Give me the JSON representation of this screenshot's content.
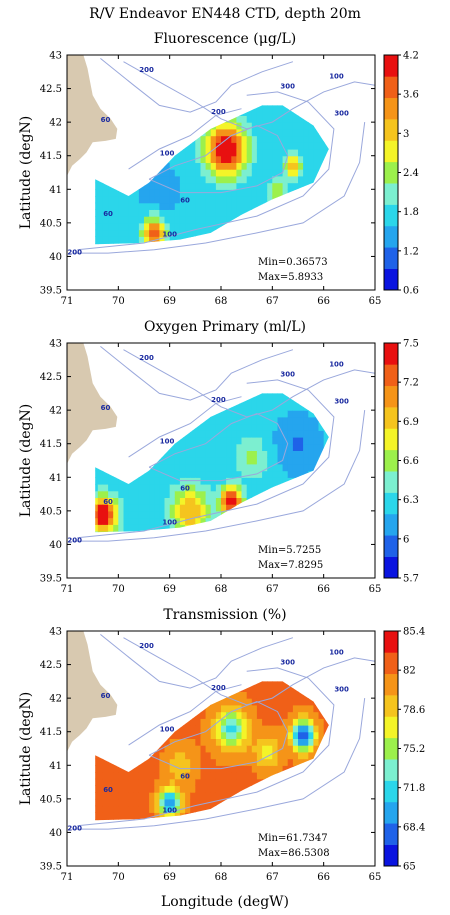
{
  "page": {
    "title": "R/V Endeavor EN448 CTD, depth 20m",
    "xlabel": "Longitude (degW)"
  },
  "colors": {
    "land": "#d8c9b0",
    "isobath": "#9aa8dc",
    "frame": "#000000",
    "depth_label": "#1a2aa0"
  },
  "colormap": [
    "#0a14e0",
    "#1f62e8",
    "#25a5ee",
    "#2bd6ea",
    "#7cefd0",
    "#9cf04c",
    "#f4f428",
    "#f5c41e",
    "#f59418",
    "#f06018",
    "#e81010"
  ],
  "chart_data": [
    {
      "type": "heatmap",
      "title": "Fluorescence (μg/L)",
      "xlabel": "",
      "ylabel": "Latitude (degN)",
      "xlim": [
        71,
        65
      ],
      "ylim": [
        39.5,
        43
      ],
      "xticks": [
        "71",
        "70",
        "69",
        "68",
        "67",
        "66",
        "65"
      ],
      "yticks": [
        "39.5",
        "40",
        "40.5",
        "41",
        "41.5",
        "42",
        "42.5",
        "43"
      ],
      "colorbar": {
        "min": 0.6,
        "max": 4.2,
        "ticks": [
          "0.6",
          "1.2",
          "1.8",
          "2.4",
          "3",
          "3.6",
          "4.2"
        ]
      },
      "annotations": {
        "min": "Min=0.36573",
        "max": "Max=5.8933"
      },
      "hotspots": [
        {
          "lon": 67.9,
          "lat": 41.6,
          "value": 4.4,
          "spread": 0.28
        },
        {
          "lon": 66.6,
          "lat": 41.35,
          "value": 3.2,
          "spread": 0.12
        },
        {
          "lon": 69.3,
          "lat": 40.35,
          "value": 3.8,
          "spread": 0.16
        },
        {
          "lon": 66.9,
          "lat": 40.95,
          "value": 2.6,
          "spread": 0.14
        },
        {
          "lon": 69.2,
          "lat": 41.0,
          "value": 1.4,
          "spread": 0.2
        }
      ],
      "background_value": 1.6
    },
    {
      "type": "heatmap",
      "title": "Oxygen Primary (ml/L)",
      "xlabel": "",
      "ylabel": "Latitude (degN)",
      "xlim": [
        71,
        65
      ],
      "ylim": [
        39.5,
        43
      ],
      "xticks": [
        "71",
        "70",
        "69",
        "68",
        "67",
        "66",
        "65"
      ],
      "yticks": [
        "39.5",
        "40",
        "40.5",
        "41",
        "41.5",
        "42",
        "42.5",
        "43"
      ],
      "colorbar": {
        "min": 5.7,
        "max": 7.5,
        "ticks": [
          "5.7",
          "6",
          "6.3",
          "6.6",
          "6.9",
          "7.2",
          "7.5"
        ]
      },
      "annotations": {
        "min": "Min=5.7255",
        "max": "Max=7.8295"
      },
      "hotspots": [
        {
          "lon": 70.3,
          "lat": 40.45,
          "value": 7.6,
          "spread": 0.18
        },
        {
          "lon": 67.8,
          "lat": 40.65,
          "value": 7.6,
          "spread": 0.14
        },
        {
          "lon": 68.6,
          "lat": 40.5,
          "value": 7.0,
          "spread": 0.25
        },
        {
          "lon": 67.4,
          "lat": 41.3,
          "value": 6.6,
          "spread": 0.2
        },
        {
          "lon": 66.5,
          "lat": 41.5,
          "value": 6.0,
          "spread": 0.3
        }
      ],
      "background_value": 6.25
    },
    {
      "type": "heatmap",
      "title": "Transmission (%)",
      "xlabel": "Longitude (degW)",
      "ylabel": "Latitude (degN)",
      "xlim": [
        71,
        65
      ],
      "ylim": [
        39.5,
        43
      ],
      "xticks": [
        "71",
        "70",
        "69",
        "68",
        "67",
        "66",
        "65"
      ],
      "yticks": [
        "39.5",
        "40",
        "40.5",
        "41",
        "41.5",
        "42",
        "42.5",
        "43"
      ],
      "colorbar": {
        "min": 65,
        "max": 85.4,
        "ticks": [
          "65",
          "68.4",
          "71.8",
          "75.2",
          "78.6",
          "82",
          "85.4"
        ]
      },
      "annotations": {
        "min": "Min=61.7347",
        "max": "Max=86.5308"
      },
      "hotspots": [
        {
          "lon": 67.8,
          "lat": 41.55,
          "value": 72,
          "spread": 0.22
        },
        {
          "lon": 66.4,
          "lat": 41.45,
          "value": 67,
          "spread": 0.16
        },
        {
          "lon": 69.0,
          "lat": 40.45,
          "value": 68,
          "spread": 0.14
        },
        {
          "lon": 68.8,
          "lat": 41.0,
          "value": 79,
          "spread": 0.2
        },
        {
          "lon": 67.1,
          "lat": 41.2,
          "value": 76,
          "spread": 0.16
        }
      ],
      "background_value": 82
    }
  ]
}
